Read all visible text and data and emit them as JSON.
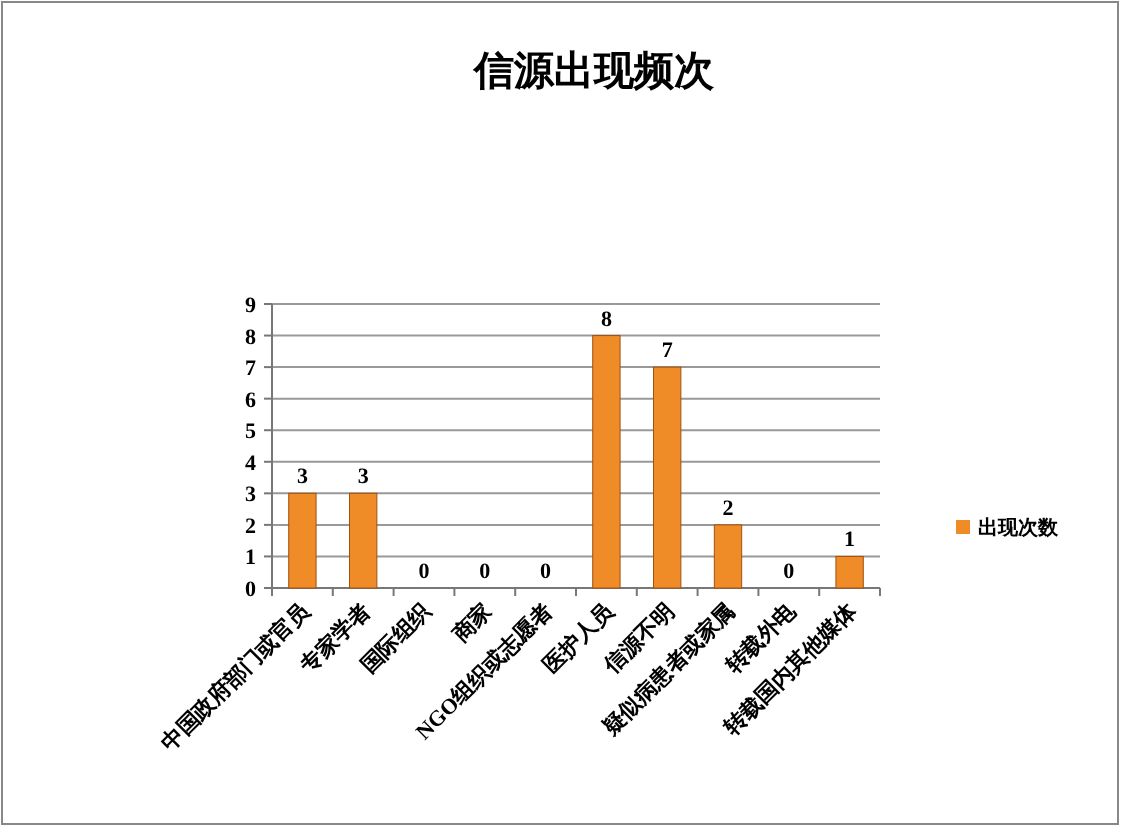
{
  "chart_data": {
    "type": "bar",
    "title": "信源出现频次",
    "categories": [
      "中国政府部门或官员",
      "专家学者",
      "国际组织",
      "商家",
      "NGO组织或志愿者",
      "医护人员",
      "信源不明",
      "疑似病患者或家属",
      "转载外电",
      "转载国内其他媒体"
    ],
    "series": [
      {
        "name": "出现次数",
        "color": "#f08c28",
        "values": [
          3,
          3,
          0,
          0,
          0,
          8,
          7,
          2,
          0,
          1
        ]
      }
    ],
    "ylim": [
      0,
      9
    ],
    "yticks": [
      0,
      1,
      2,
      3,
      4,
      5,
      6,
      7,
      8,
      9
    ],
    "grid": "y",
    "legend": "right",
    "data_labels": true
  }
}
